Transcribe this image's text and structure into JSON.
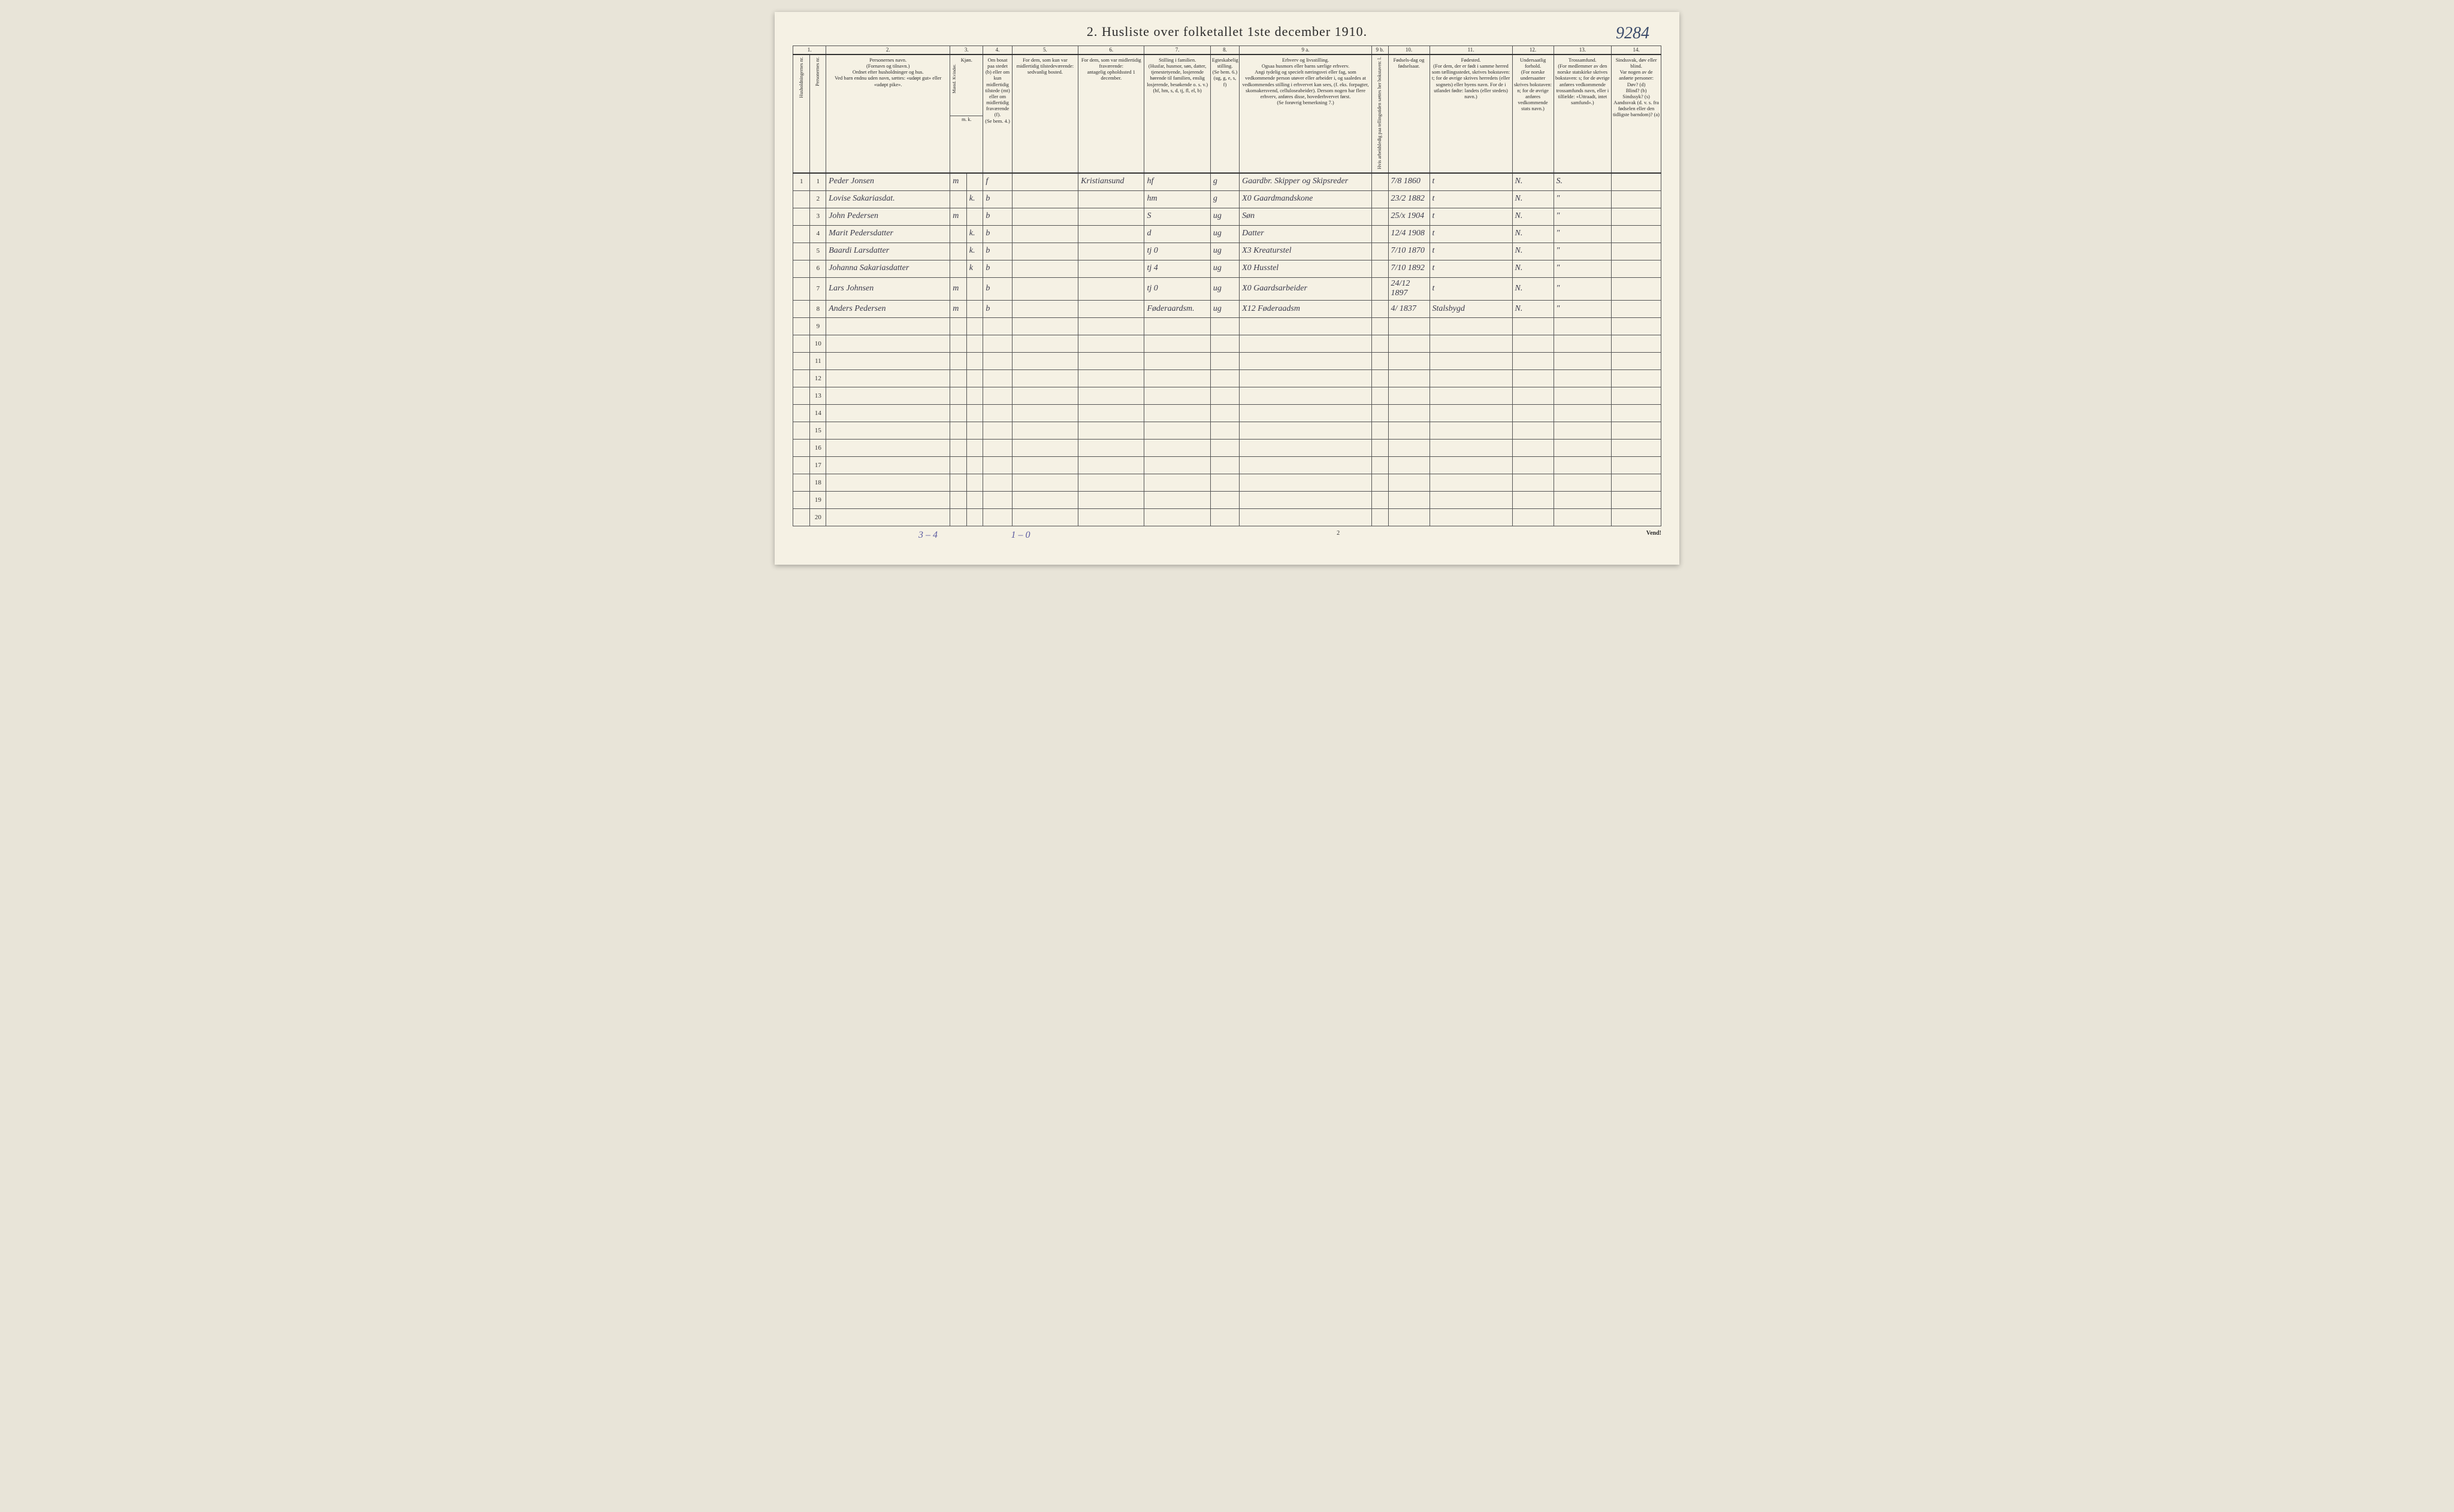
{
  "title": "2.  Husliste over folketallet 1ste december 1910.",
  "handwritten_page_number": "9284",
  "footer_page_number": "2",
  "footer_vend": "Vend!",
  "tally_left": "3 – 4",
  "tally_mid": "1 – 0",
  "column_numbers": [
    "1.",
    "",
    "2.",
    "3.",
    "4.",
    "5.",
    "6.",
    "7.",
    "8.",
    "9 a.",
    "9 b.",
    "10.",
    "11.",
    "12.",
    "13.",
    "14."
  ],
  "headers": {
    "c1": "Husholdningernes nr.",
    "c1b": "Personernes nr.",
    "c2": "Personernes navn.\n(Fornavn og tilnavn.)\nOrdnet efter husholdninger og hus.\nVed barn endnu uden navn, sættes: «udøpt gut» eller «udøpt pike».",
    "c3": "Kjøn.",
    "c3sub": "Mænd.  Kvinder.",
    "c3mk": "m.   k.",
    "c4": "Om bosat paa stedet (b) eller om kun midlertidig tilstede (mt) eller om midlertidig fraværende (f).\n(Se bem. 4.)",
    "c5": "For dem, som kun var midlertidig tilstedeværende:\nsedvanlig bosted.",
    "c6": "For dem, som var midlertidig fraværende:\nantagelig opholdssted 1 december.",
    "c7": "Stilling i familien.\n(Husfar, husmor, søn, datter, tjenestetyende, losjerende hørende til familien, enslig losjerende, besøkende o. s. v.)\n(hf, hm, s, d, tj, fl, el, b)",
    "c8": "Egteskabelig stilling.\n(Se bem. 6.)\n(ug, g, e, s, f)",
    "c9a": "Erhverv og livsstilling.\nOgsaa husmors eller barns særlige erhverv.\nAngi tydelig og specielt næringsvei eller fag, som vedkommende person utøver eller arbeider i, og saaledes at vedkommendes stilling i erhvervet kan sees, (f. eks. forpagter, skomakersvend, celluloseabeider). Dersom nogen har flere erhverv, anføres disse, hovederhvervet først.\n(Se forøvrig bemerkning 7.)",
    "c9b": "Hvis arbeidsledig paa tellingstiden sættes her bokstaven: l.",
    "c10": "Fødsels-dag og fødselsaar.",
    "c11": "Fødested.\n(For dem, der er født i samme herred som tællingsstedet, skrives bokstaven: t; for de øvrige skrives herredets (eller sognets) eller byens navn. For de i utlandet fødte: landets (eller stedets) navn.)",
    "c12": "Undersaatlig forhold.\n(For norske undersaatter skrives bokstaven: n; for de øvrige anføres vedkommende stats navn.)",
    "c13": "Trossamfund.\n(For medlemmer av den norske statskirke skrives bokstaven: s; for de øvrige anføres vedkommende trossamfunds navn, eller i tilfælde: «Uttraadt, intet samfund».)",
    "c14": "Sindssvak, døv eller blind.\nVar nogen av de anførte personer:\nDøv? (d)\nBlind? (b)\nSindssyk? (s)\nAandssvak (d. v. s. fra fødselen eller den tidligste barndom)? (a)"
  },
  "rows": [
    {
      "hnr": "1",
      "pnr": "1",
      "navn": "Peder Jonsen",
      "m": "m",
      "k": "",
      "bosat": "f",
      "sedv": "",
      "frav": "Kristiansund",
      "stilling": "hf",
      "egt": "g",
      "erhverv": "Gaardbr. Skipper og Skipsreder",
      "l": "",
      "fodsel": "7/8 1860",
      "fodested": "t",
      "under": "N.",
      "tros": "S.",
      "sind": ""
    },
    {
      "hnr": "",
      "pnr": "2",
      "navn": "Lovise Sakariasdat.",
      "m": "",
      "k": "k.",
      "bosat": "b",
      "sedv": "",
      "frav": "",
      "stilling": "hm",
      "egt": "g",
      "erhverv": "X0 Gaardmandskone",
      "l": "",
      "fodsel": "23/2 1882",
      "fodested": "t",
      "under": "N.",
      "tros": "\"",
      "sind": ""
    },
    {
      "hnr": "",
      "pnr": "3",
      "navn": "John Pedersen",
      "m": "m",
      "k": "",
      "bosat": "b",
      "sedv": "",
      "frav": "",
      "stilling": "S",
      "egt": "ug",
      "erhverv": "Søn",
      "l": "",
      "fodsel": "25/x 1904",
      "fodested": "t",
      "under": "N.",
      "tros": "\"",
      "sind": ""
    },
    {
      "hnr": "",
      "pnr": "4",
      "navn": "Marit Pedersdatter",
      "m": "",
      "k": "k.",
      "bosat": "b",
      "sedv": "",
      "frav": "",
      "stilling": "d",
      "egt": "ug",
      "erhverv": "Datter",
      "l": "",
      "fodsel": "12/4 1908",
      "fodested": "t",
      "under": "N.",
      "tros": "\"",
      "sind": ""
    },
    {
      "hnr": "",
      "pnr": "5",
      "navn": "Baardi Larsdatter",
      "m": "",
      "k": "k.",
      "bosat": "b",
      "sedv": "",
      "frav": "",
      "stilling": "tj   0",
      "egt": "ug",
      "erhverv": "X3 Kreaturstel",
      "l": "",
      "fodsel": "7/10 1870",
      "fodested": "t",
      "under": "N.",
      "tros": "\"",
      "sind": ""
    },
    {
      "hnr": "",
      "pnr": "6",
      "navn": "Johanna Sakariasdatter",
      "m": "",
      "k": "k",
      "bosat": "b",
      "sedv": "",
      "frav": "",
      "stilling": "tj   4",
      "egt": "ug",
      "erhverv": "X0 Husstel",
      "l": "",
      "fodsel": "7/10 1892",
      "fodested": "t",
      "under": "N.",
      "tros": "\"",
      "sind": ""
    },
    {
      "hnr": "",
      "pnr": "7",
      "navn": "Lars Johnsen",
      "m": "m",
      "k": "",
      "bosat": "b",
      "sedv": "",
      "frav": "",
      "stilling": "tj   0",
      "egt": "ug",
      "erhverv": "X0 Gaardsarbeider",
      "l": "",
      "fodsel": "24/12 1897",
      "fodested": "t",
      "under": "N.",
      "tros": "\"",
      "sind": ""
    },
    {
      "hnr": "",
      "pnr": "8",
      "navn": "Anders Pedersen",
      "m": "m",
      "k": "",
      "bosat": "b",
      "sedv": "",
      "frav": "",
      "stilling": "Føderaardsm.",
      "egt": "ug",
      "erhverv": "X12 Føderaadsm",
      "l": "",
      "fodsel": "4/ 1837",
      "fodested": "Stalsbygd",
      "under": "N.",
      "tros": "\"",
      "sind": ""
    },
    {
      "hnr": "",
      "pnr": "9",
      "navn": "",
      "m": "",
      "k": "",
      "bosat": "",
      "sedv": "",
      "frav": "",
      "stilling": "",
      "egt": "",
      "erhverv": "",
      "l": "",
      "fodsel": "",
      "fodested": "",
      "under": "",
      "tros": "",
      "sind": ""
    },
    {
      "hnr": "",
      "pnr": "10",
      "navn": "",
      "m": "",
      "k": "",
      "bosat": "",
      "sedv": "",
      "frav": "",
      "stilling": "",
      "egt": "",
      "erhverv": "",
      "l": "",
      "fodsel": "",
      "fodested": "",
      "under": "",
      "tros": "",
      "sind": ""
    },
    {
      "hnr": "",
      "pnr": "11",
      "navn": "",
      "m": "",
      "k": "",
      "bosat": "",
      "sedv": "",
      "frav": "",
      "stilling": "",
      "egt": "",
      "erhverv": "",
      "l": "",
      "fodsel": "",
      "fodested": "",
      "under": "",
      "tros": "",
      "sind": ""
    },
    {
      "hnr": "",
      "pnr": "12",
      "navn": "",
      "m": "",
      "k": "",
      "bosat": "",
      "sedv": "",
      "frav": "",
      "stilling": "",
      "egt": "",
      "erhverv": "",
      "l": "",
      "fodsel": "",
      "fodested": "",
      "under": "",
      "tros": "",
      "sind": ""
    },
    {
      "hnr": "",
      "pnr": "13",
      "navn": "",
      "m": "",
      "k": "",
      "bosat": "",
      "sedv": "",
      "frav": "",
      "stilling": "",
      "egt": "",
      "erhverv": "",
      "l": "",
      "fodsel": "",
      "fodested": "",
      "under": "",
      "tros": "",
      "sind": ""
    },
    {
      "hnr": "",
      "pnr": "14",
      "navn": "",
      "m": "",
      "k": "",
      "bosat": "",
      "sedv": "",
      "frav": "",
      "stilling": "",
      "egt": "",
      "erhverv": "",
      "l": "",
      "fodsel": "",
      "fodested": "",
      "under": "",
      "tros": "",
      "sind": ""
    },
    {
      "hnr": "",
      "pnr": "15",
      "navn": "",
      "m": "",
      "k": "",
      "bosat": "",
      "sedv": "",
      "frav": "",
      "stilling": "",
      "egt": "",
      "erhverv": "",
      "l": "",
      "fodsel": "",
      "fodested": "",
      "under": "",
      "tros": "",
      "sind": ""
    },
    {
      "hnr": "",
      "pnr": "16",
      "navn": "",
      "m": "",
      "k": "",
      "bosat": "",
      "sedv": "",
      "frav": "",
      "stilling": "",
      "egt": "",
      "erhverv": "",
      "l": "",
      "fodsel": "",
      "fodested": "",
      "under": "",
      "tros": "",
      "sind": ""
    },
    {
      "hnr": "",
      "pnr": "17",
      "navn": "",
      "m": "",
      "k": "",
      "bosat": "",
      "sedv": "",
      "frav": "",
      "stilling": "",
      "egt": "",
      "erhverv": "",
      "l": "",
      "fodsel": "",
      "fodested": "",
      "under": "",
      "tros": "",
      "sind": ""
    },
    {
      "hnr": "",
      "pnr": "18",
      "navn": "",
      "m": "",
      "k": "",
      "bosat": "",
      "sedv": "",
      "frav": "",
      "stilling": "",
      "egt": "",
      "erhverv": "",
      "l": "",
      "fodsel": "",
      "fodested": "",
      "under": "",
      "tros": "",
      "sind": ""
    },
    {
      "hnr": "",
      "pnr": "19",
      "navn": "",
      "m": "",
      "k": "",
      "bosat": "",
      "sedv": "",
      "frav": "",
      "stilling": "",
      "egt": "",
      "erhverv": "",
      "l": "",
      "fodsel": "",
      "fodested": "",
      "under": "",
      "tros": "",
      "sind": ""
    },
    {
      "hnr": "",
      "pnr": "20",
      "navn": "",
      "m": "",
      "k": "",
      "bosat": "",
      "sedv": "",
      "frav": "",
      "stilling": "",
      "egt": "",
      "erhverv": "",
      "l": "",
      "fodsel": "",
      "fodested": "",
      "under": "",
      "tros": "",
      "sind": ""
    }
  ],
  "col_widths_pct": [
    2,
    2,
    15,
    2,
    2,
    3.5,
    8,
    8,
    8,
    3.5,
    16,
    2,
    5,
    10,
    5,
    7,
    6
  ]
}
